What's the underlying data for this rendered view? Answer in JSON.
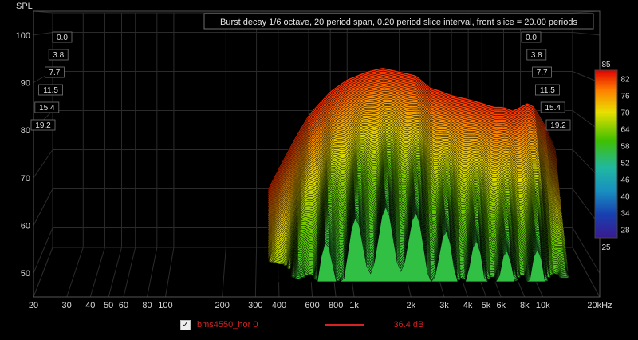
{
  "chart_data": {
    "type": "area",
    "subtype": "waterfall-3d burst decay",
    "title": "Burst decay 1/6 octave, 20 period span, 0.20 period slice interval,  front slice = 20.00 periods",
    "ylabel": "SPL",
    "ylim": [
      45,
      105
    ],
    "y_ticks": [
      "100",
      "90",
      "80",
      "70",
      "60",
      "50"
    ],
    "x_scale": "log",
    "xlim": [
      20,
      20000
    ],
    "x_ticks": [
      {
        "label": "20",
        "value": 20
      },
      {
        "label": "30",
        "value": 30
      },
      {
        "label": "40",
        "value": 40
      },
      {
        "label": "50",
        "value": 50
      },
      {
        "label": "60",
        "value": 60
      },
      {
        "label": "80",
        "value": 80
      },
      {
        "label": "100",
        "value": 100
      },
      {
        "label": "200",
        "value": 200
      },
      {
        "label": "300",
        "value": 300
      },
      {
        "label": "400",
        "value": 400
      },
      {
        "label": "600",
        "value": 600
      },
      {
        "label": "800",
        "value": 800
      },
      {
        "label": "1k",
        "value": 1000
      },
      {
        "label": "2k",
        "value": 2000
      },
      {
        "label": "3k",
        "value": 3000
      },
      {
        "label": "4k",
        "value": 4000
      },
      {
        "label": "5k",
        "value": 5000
      },
      {
        "label": "6k",
        "value": 6000
      },
      {
        "label": "8k",
        "value": 8000
      },
      {
        "label": "10k",
        "value": 10000
      },
      {
        "label": "20kHz",
        "value": 20000
      }
    ],
    "depth_labels": [
      "0.0",
      "3.8",
      "7.7",
      "11.5",
      "15.4",
      "19.2"
    ],
    "colorbar": {
      "min": 25,
      "max": 85,
      "tick_labels": [
        "82",
        "76",
        "70",
        "64",
        "58",
        "52",
        "46",
        "40",
        "34",
        "28"
      ],
      "end_labels": [
        "85",
        "25"
      ]
    },
    "series": [
      {
        "name": "bms4550_hor 0",
        "level": "36.4 dB"
      }
    ],
    "back_slice_hz": [
      350,
      400,
      500,
      600,
      800,
      1000,
      1300,
      1600,
      2000,
      2500,
      3000,
      3500,
      4000,
      5000,
      6000,
      7000,
      8000,
      9000,
      10000,
      11000,
      12000,
      14000,
      16000
    ],
    "back_slice_spl": [
      60,
      65,
      73,
      79,
      85,
      88,
      90,
      91,
      90,
      89,
      86,
      85,
      84,
      83,
      82,
      81,
      81,
      80,
      81,
      82,
      81,
      76,
      70
    ]
  },
  "legend": {
    "checkbox_mark": "✓",
    "series_name": "bms4550_hor 0",
    "series_level": "36.4 dB"
  },
  "colors": {
    "background": "#000000",
    "grid": "#2b2b2b",
    "series_line": "#d62222",
    "surface_low": "#22a8a0",
    "surface_high": "#ff1c00"
  }
}
